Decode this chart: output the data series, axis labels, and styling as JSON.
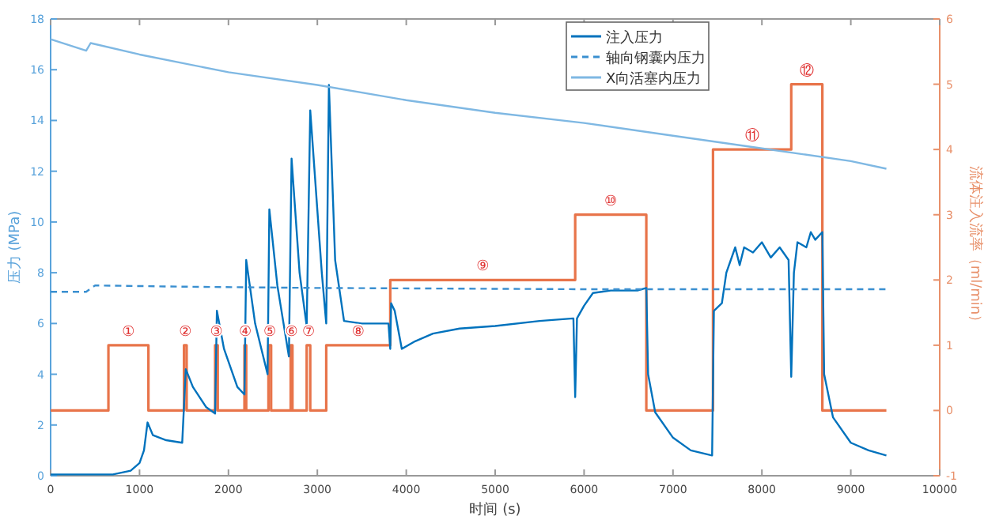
{
  "chart_data": {
    "type": "line",
    "xlabel": "时间 (s)",
    "ylabel": "压力 (MPa)",
    "y2label": "流体注入流率（ml/min）",
    "xlim": [
      0,
      10000
    ],
    "xticks": [
      0,
      1000,
      2000,
      3000,
      4000,
      5000,
      6000,
      7000,
      8000,
      9000,
      10000
    ],
    "ylim": [
      0,
      18
    ],
    "yticks": [
      0,
      2,
      4,
      6,
      8,
      10,
      12,
      14,
      16,
      18
    ],
    "y2lim": [
      -1,
      6
    ],
    "y2ticks": [
      -1,
      0,
      1,
      2,
      3,
      4,
      5,
      6
    ],
    "legend": "top right",
    "series": [
      {
        "name": "注入压力",
        "color": "#0072bd",
        "line_style": "solid",
        "x": [
          0,
          700,
          900,
          1000,
          1050,
          1090,
          1150,
          1300,
          1480,
          1520,
          1600,
          1750,
          1850,
          1870,
          1950,
          2100,
          2180,
          2200,
          2300,
          2440,
          2460,
          2550,
          2680,
          2710,
          2800,
          2880,
          2920,
          3050,
          3100,
          3130,
          3200,
          3300,
          3500,
          3800,
          3820,
          3830,
          3870,
          3950,
          4100,
          4300,
          4600,
          5000,
          5500,
          5880,
          5900,
          5920,
          6000,
          6100,
          6300,
          6600,
          6700,
          6720,
          6800,
          7000,
          7200,
          7440,
          7460,
          7550,
          7600,
          7700,
          7750,
          7800,
          7900,
          8000,
          8100,
          8200,
          8300,
          8330,
          8360,
          8400,
          8500,
          8550,
          8600,
          8680,
          8700,
          8800,
          9000,
          9200,
          9400
        ],
        "values": [
          0.05,
          0.05,
          0.2,
          0.5,
          1.0,
          2.1,
          1.6,
          1.4,
          1.3,
          4.2,
          3.5,
          2.7,
          2.45,
          6.5,
          5.0,
          3.5,
          3.2,
          8.5,
          6.0,
          4.0,
          10.5,
          7.5,
          4.7,
          12.5,
          8.0,
          5.9,
          14.4,
          8.0,
          6.0,
          15.4,
          8.5,
          6.1,
          6.0,
          6.0,
          5.0,
          6.8,
          6.5,
          5.0,
          5.3,
          5.6,
          5.8,
          5.9,
          6.1,
          6.2,
          3.1,
          6.2,
          6.7,
          7.2,
          7.3,
          7.3,
          7.4,
          4.0,
          2.5,
          1.5,
          1.0,
          0.8,
          6.5,
          6.8,
          8.0,
          9.0,
          8.3,
          9.0,
          8.8,
          9.2,
          8.6,
          9.0,
          8.5,
          3.9,
          8.0,
          9.2,
          9.0,
          9.6,
          9.3,
          9.6,
          4.0,
          2.3,
          1.3,
          1.0,
          0.8
        ]
      },
      {
        "name": "轴向钢囊内压力",
        "color": "#3a8fd0",
        "line_style": "dashed",
        "x": [
          0,
          400,
          500,
          1500,
          3000,
          6000,
          9400
        ],
        "values": [
          7.25,
          7.25,
          7.5,
          7.45,
          7.4,
          7.35,
          7.35
        ]
      },
      {
        "name": "X向活塞内压力",
        "color": "#7fb8e3",
        "line_style": "solid",
        "x": [
          0,
          400,
          450,
          1000,
          2000,
          3000,
          4000,
          5000,
          6000,
          7000,
          8000,
          9000,
          9400
        ],
        "values": [
          17.2,
          16.75,
          17.05,
          16.6,
          15.9,
          15.4,
          14.8,
          14.3,
          13.9,
          13.4,
          12.9,
          12.4,
          12.1
        ]
      },
      {
        "type": "step",
        "axis": "y2",
        "color": "#e8744a",
        "line_style": "solid",
        "x": [
          0,
          650,
          1100,
          1500,
          1530,
          1850,
          1880,
          2180,
          2200,
          2450,
          2480,
          2700,
          2720,
          2880,
          2920,
          3100,
          3820,
          5900,
          6700,
          7450,
          8330,
          8680,
          9400
        ],
        "values": [
          0,
          1,
          0,
          1,
          0,
          1,
          0,
          1,
          0,
          1,
          0,
          1,
          0,
          1,
          0,
          1,
          2,
          3,
          0,
          4,
          5,
          0,
          0
        ]
      }
    ],
    "annotations": [
      "①",
      "②",
      "③",
      "④",
      "⑤",
      "⑥",
      "⑦",
      "⑧",
      "⑨",
      "⑩",
      "⑪",
      "⑫"
    ]
  }
}
